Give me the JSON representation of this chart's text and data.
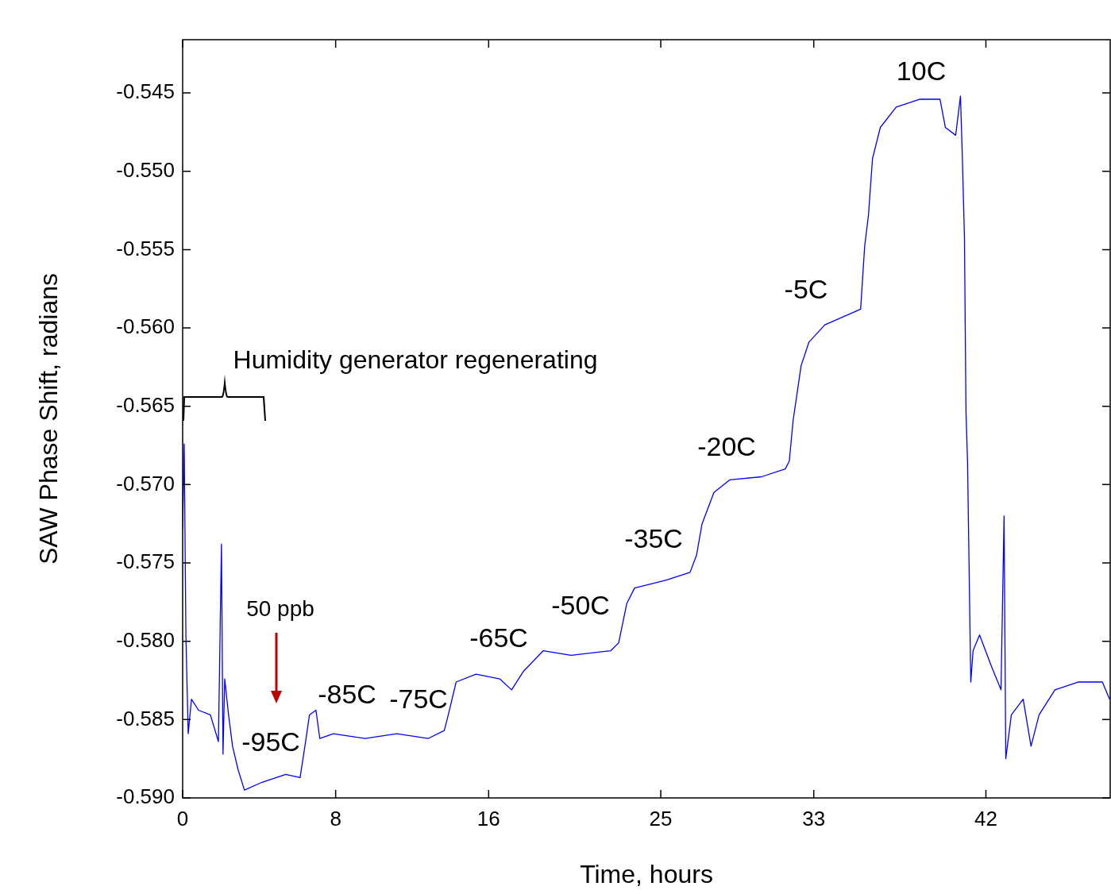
{
  "chart_data": {
    "type": "line",
    "xlabel": "Time, hours",
    "ylabel": "SAW Phase Shift, radians",
    "xlim": [
      0,
      48.5
    ],
    "ylim": [
      -0.59,
      -0.5416
    ],
    "xticks": [
      0,
      8,
      16,
      25,
      33,
      42
    ],
    "yticks": [
      {
        "value": -0.59,
        "label": "-0.590"
      },
      -0.585,
      {
        "value": -0.58,
        "label": "-0.580"
      },
      -0.575,
      {
        "value": -0.57,
        "label": "-0.570"
      },
      -0.565,
      {
        "value": -0.56,
        "label": "-0.560"
      },
      -0.555,
      {
        "value": -0.55,
        "label": "-0.550"
      },
      -0.545
    ],
    "grid": false,
    "legend": false,
    "marker": "none",
    "line_style": "solid",
    "series": [
      {
        "color": "#0000ff",
        "x": [
          0,
          0.08,
          0.17,
          0.29,
          0.46,
          0.83,
          1.45,
          1.87,
          2.03,
          2.11,
          2.2,
          2.4,
          2.61,
          2.9,
          3.23,
          4.15,
          5.39,
          6.14,
          6.43,
          6.63,
          6.97,
          7.17,
          7.88,
          9.54,
          11.19,
          12.85,
          13.68,
          13.89,
          14.3,
          15.34,
          16.58,
          17.2,
          17.83,
          18.86,
          20.31,
          22.39,
          22.8,
          23.22,
          23.63,
          25.29,
          26.53,
          26.87,
          27.16,
          27.78,
          28.6,
          30.27,
          31.51,
          31.72,
          31.92,
          32.34,
          32.75,
          33.58,
          35.45,
          35.66,
          35.86,
          36.07,
          36.48,
          37.31,
          38.56,
          39.6,
          39.88,
          40.42,
          40.67,
          40.76,
          40.88,
          40.96,
          41.04,
          41.21,
          41.33,
          41.67,
          42.29,
          42.79,
          42.95,
          43.04,
          43.33,
          43.95,
          44.36,
          44.78,
          45.61,
          46.85,
          48.09,
          48.47
        ],
        "values": [
          -0.5728,
          -0.5674,
          -0.5796,
          -0.5859,
          -0.5837,
          -0.5844,
          -0.5847,
          -0.5864,
          -0.5738,
          -0.5872,
          -0.5824,
          -0.5847,
          -0.5867,
          -0.5882,
          -0.5895,
          -0.589,
          -0.5885,
          -0.5887,
          -0.5864,
          -0.5847,
          -0.5844,
          -0.5862,
          -0.5859,
          -0.5862,
          -0.5859,
          -0.5862,
          -0.5857,
          -0.5847,
          -0.5826,
          -0.5821,
          -0.5824,
          -0.5831,
          -0.5819,
          -0.5806,
          -0.5809,
          -0.5806,
          -0.5801,
          -0.5776,
          -0.5766,
          -0.5761,
          -0.5756,
          -0.5745,
          -0.5725,
          -0.5705,
          -0.5697,
          -0.5695,
          -0.569,
          -0.5685,
          -0.5659,
          -0.5624,
          -0.5609,
          -0.5598,
          -0.5588,
          -0.5548,
          -0.5528,
          -0.5492,
          -0.5472,
          -0.5459,
          -0.5454,
          -0.5454,
          -0.5472,
          -0.5477,
          -0.5452,
          -0.5487,
          -0.5543,
          -0.5654,
          -0.5685,
          -0.5826,
          -0.5806,
          -0.5796,
          -0.5816,
          -0.5831,
          -0.572,
          -0.5875,
          -0.5847,
          -0.5837,
          -0.5867,
          -0.5847,
          -0.5831,
          -0.5826,
          -0.5826,
          -0.5837
        ]
      }
    ],
    "annotations": [
      "Humidity generator regenerating",
      "50 ppb",
      "-95C",
      "-85C",
      "-75C",
      "-65C",
      "-50C",
      "-35C",
      "-20C",
      "-5C",
      "10C"
    ]
  }
}
